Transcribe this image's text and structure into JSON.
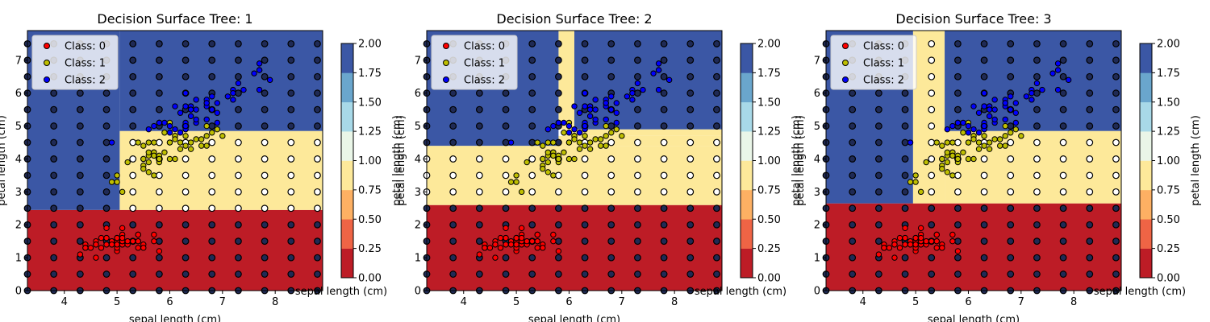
{
  "colors": {
    "class0": "#bd1c26",
    "class1": "#fde99a",
    "class2": "#3b57a5",
    "point0": "#ff0000",
    "point1": "#bfbf00",
    "point2": "#0000ff",
    "grid_point_fill_dark": "#1f2a55",
    "grid_point_fill_light": "#ffffff"
  },
  "chart_data": [
    {
      "type": "scatter",
      "title": "Decision Surface Tree: 1",
      "xlabel": "sepal length (cm)",
      "ylabel": "petal length (cm)",
      "xlim": [
        3.3,
        8.9
      ],
      "ylim": [
        0,
        7.9
      ],
      "xticks": [
        4,
        5,
        6,
        7,
        8
      ],
      "yticks": [
        0,
        1,
        2,
        3,
        4,
        5,
        6,
        7
      ],
      "legend": {
        "position": "top-left",
        "entries": [
          "Class: 0",
          "Class: 1",
          "Class: 2"
        ]
      },
      "regions": [
        {
          "class": 0,
          "x": [
            3.3,
            8.9
          ],
          "y": [
            0,
            2.45
          ]
        },
        {
          "class": 1,
          "x": [
            5.05,
            8.9
          ],
          "y": [
            2.45,
            4.85
          ]
        },
        {
          "class": 1,
          "x": [
            6.05,
            6.15
          ],
          "y": [
            4.85,
            5.15
          ]
        },
        {
          "class": 1,
          "x": [
            6.95,
            8.9
          ],
          "y": [
            4.85,
            5.0
          ]
        },
        {
          "class": 2,
          "x": [
            3.3,
            5.05
          ],
          "y": [
            2.45,
            7.9
          ]
        },
        {
          "class": 2,
          "x": [
            5.05,
            8.9
          ],
          "y": [
            4.85,
            7.9
          ]
        }
      ],
      "colorbar": {
        "ticks": [
          "0.00",
          "0.25",
          "0.50",
          "0.75",
          "1.00",
          "1.25",
          "1.50",
          "1.75",
          "2.00"
        ],
        "label": "petal length (cm)",
        "xlabel": "sepal length (cm)"
      }
    },
    {
      "type": "scatter",
      "title": "Decision Surface Tree: 2",
      "xlabel": "sepal length (cm)",
      "ylabel": "petal length (cm)",
      "xlim": [
        3.3,
        8.9
      ],
      "ylim": [
        0,
        7.9
      ],
      "xticks": [
        4,
        5,
        6,
        7,
        8
      ],
      "yticks": [
        0,
        1,
        2,
        3,
        4,
        5,
        6,
        7
      ],
      "legend": {
        "position": "top-left",
        "entries": [
          "Class: 0",
          "Class: 1",
          "Class: 2"
        ]
      },
      "regions": [
        {
          "class": 0,
          "x": [
            3.3,
            8.9
          ],
          "y": [
            0,
            2.6
          ]
        },
        {
          "class": 1,
          "x": [
            3.3,
            8.9
          ],
          "y": [
            2.6,
            4.4
          ]
        },
        {
          "class": 1,
          "x": [
            5.05,
            8.9
          ],
          "y": [
            4.4,
            4.7
          ]
        },
        {
          "class": 1,
          "x": [
            5.9,
            8.9
          ],
          "y": [
            4.7,
            4.9
          ]
        },
        {
          "class": 1,
          "x": [
            5.8,
            6.1
          ],
          "y": [
            4.9,
            7.9
          ]
        },
        {
          "class": 2,
          "x": [
            3.3,
            5.8
          ],
          "y": [
            4.4,
            7.9
          ]
        },
        {
          "class": 2,
          "x": [
            6.1,
            8.9
          ],
          "y": [
            4.9,
            7.9
          ]
        }
      ],
      "colorbar": {
        "ticks": [
          "0.00",
          "0.25",
          "0.50",
          "0.75",
          "1.00",
          "1.25",
          "1.50",
          "1.75",
          "2.00"
        ],
        "label": "petal length (cm)",
        "xlabel": "sepal length (cm)"
      }
    },
    {
      "type": "scatter",
      "title": "Decision Surface Tree: 3",
      "xlabel": "sepal length (cm)",
      "ylabel": "petal length (cm)",
      "xlim": [
        3.3,
        8.9
      ],
      "ylim": [
        0,
        7.9
      ],
      "xticks": [
        4,
        5,
        6,
        7,
        8
      ],
      "yticks": [
        0,
        1,
        2,
        3,
        4,
        5,
        6,
        7
      ],
      "legend": {
        "position": "top-left",
        "entries": [
          "Class: 0",
          "Class: 1",
          "Class: 2"
        ]
      },
      "regions": [
        {
          "class": 0,
          "x": [
            3.3,
            8.9
          ],
          "y": [
            0,
            2.65
          ]
        },
        {
          "class": 1,
          "x": [
            4.95,
            5.55
          ],
          "y": [
            2.65,
            7.9
          ]
        },
        {
          "class": 1,
          "x": [
            5.55,
            8.9
          ],
          "y": [
            2.65,
            4.85
          ]
        },
        {
          "class": 1,
          "x": [
            6.45,
            8.9
          ],
          "y": [
            4.85,
            5.0
          ]
        },
        {
          "class": 2,
          "x": [
            3.3,
            4.95
          ],
          "y": [
            2.65,
            7.9
          ]
        },
        {
          "class": 2,
          "x": [
            5.55,
            8.9
          ],
          "y": [
            4.85,
            7.9
          ]
        }
      ],
      "colorbar": {
        "ticks": [
          "0.00",
          "0.25",
          "0.50",
          "0.75",
          "1.00",
          "1.25",
          "1.50",
          "1.75",
          "2.00"
        ],
        "label": "petal length (cm)",
        "xlabel": "sepal length (cm)"
      }
    }
  ],
  "iris_points": [
    [
      5.1,
      1.4,
      0
    ],
    [
      4.9,
      1.4,
      0
    ],
    [
      4.7,
      1.3,
      0
    ],
    [
      4.6,
      1.5,
      0
    ],
    [
      5.0,
      1.4,
      0
    ],
    [
      5.4,
      1.7,
      0
    ],
    [
      4.6,
      1.4,
      0
    ],
    [
      5.0,
      1.5,
      0
    ],
    [
      4.4,
      1.4,
      0
    ],
    [
      4.9,
      1.5,
      0
    ],
    [
      5.4,
      1.5,
      0
    ],
    [
      4.8,
      1.6,
      0
    ],
    [
      4.8,
      1.4,
      0
    ],
    [
      4.3,
      1.1,
      0
    ],
    [
      5.8,
      1.2,
      0
    ],
    [
      5.7,
      1.5,
      0
    ],
    [
      5.4,
      1.3,
      0
    ],
    [
      5.1,
      1.4,
      0
    ],
    [
      5.7,
      1.7,
      0
    ],
    [
      5.1,
      1.5,
      0
    ],
    [
      5.4,
      1.7,
      0
    ],
    [
      5.1,
      1.5,
      0
    ],
    [
      4.6,
      1.0,
      0
    ],
    [
      5.1,
      1.7,
      0
    ],
    [
      4.8,
      1.9,
      0
    ],
    [
      5.0,
      1.6,
      0
    ],
    [
      5.0,
      1.6,
      0
    ],
    [
      5.2,
      1.5,
      0
    ],
    [
      5.2,
      1.4,
      0
    ],
    [
      4.7,
      1.6,
      0
    ],
    [
      4.8,
      1.6,
      0
    ],
    [
      5.4,
      1.5,
      0
    ],
    [
      5.2,
      1.5,
      0
    ],
    [
      5.5,
      1.4,
      0
    ],
    [
      4.9,
      1.5,
      0
    ],
    [
      5.0,
      1.2,
      0
    ],
    [
      5.5,
      1.3,
      0
    ],
    [
      4.9,
      1.4,
      0
    ],
    [
      4.4,
      1.3,
      0
    ],
    [
      5.1,
      1.5,
      0
    ],
    [
      5.0,
      1.3,
      0
    ],
    [
      4.5,
      1.3,
      0
    ],
    [
      4.4,
      1.3,
      0
    ],
    [
      5.0,
      1.6,
      0
    ],
    [
      5.1,
      1.9,
      0
    ],
    [
      4.8,
      1.4,
      0
    ],
    [
      5.1,
      1.6,
      0
    ],
    [
      4.6,
      1.4,
      0
    ],
    [
      5.3,
      1.5,
      0
    ],
    [
      5.0,
      1.4,
      0
    ],
    [
      7.0,
      4.7,
      1
    ],
    [
      6.4,
      4.5,
      1
    ],
    [
      6.9,
      4.9,
      1
    ],
    [
      5.5,
      4.0,
      1
    ],
    [
      6.5,
      4.6,
      1
    ],
    [
      5.7,
      4.5,
      1
    ],
    [
      6.3,
      4.7,
      1
    ],
    [
      4.9,
      3.3,
      1
    ],
    [
      6.6,
      4.6,
      1
    ],
    [
      5.2,
      3.9,
      1
    ],
    [
      5.0,
      3.5,
      1
    ],
    [
      5.9,
      4.2,
      1
    ],
    [
      6.0,
      4.0,
      1
    ],
    [
      6.1,
      4.7,
      1
    ],
    [
      5.6,
      3.6,
      1
    ],
    [
      6.7,
      4.4,
      1
    ],
    [
      5.6,
      4.5,
      1
    ],
    [
      5.8,
      4.1,
      1
    ],
    [
      6.2,
      4.5,
      1
    ],
    [
      5.6,
      3.9,
      1
    ],
    [
      5.9,
      4.8,
      1
    ],
    [
      6.1,
      4.0,
      1
    ],
    [
      6.3,
      4.9,
      1
    ],
    [
      6.1,
      4.7,
      1
    ],
    [
      6.4,
      4.3,
      1
    ],
    [
      6.6,
      4.4,
      1
    ],
    [
      6.8,
      4.8,
      1
    ],
    [
      6.7,
      5.0,
      1
    ],
    [
      6.0,
      4.5,
      1
    ],
    [
      5.7,
      3.5,
      1
    ],
    [
      5.5,
      3.8,
      1
    ],
    [
      5.5,
      3.7,
      1
    ],
    [
      5.8,
      3.9,
      1
    ],
    [
      6.0,
      5.1,
      1
    ],
    [
      5.4,
      4.5,
      1
    ],
    [
      6.0,
      4.5,
      1
    ],
    [
      6.7,
      4.7,
      1
    ],
    [
      6.3,
      4.4,
      1
    ],
    [
      5.6,
      4.1,
      1
    ],
    [
      5.5,
      4.0,
      1
    ],
    [
      5.5,
      4.4,
      1
    ],
    [
      6.1,
      4.6,
      1
    ],
    [
      5.8,
      4.0,
      1
    ],
    [
      5.0,
      3.3,
      1
    ],
    [
      5.6,
      4.2,
      1
    ],
    [
      5.7,
      4.2,
      1
    ],
    [
      5.7,
      4.2,
      1
    ],
    [
      6.2,
      4.3,
      1
    ],
    [
      5.1,
      3.0,
      1
    ],
    [
      5.7,
      4.1,
      1
    ],
    [
      6.3,
      6.0,
      2
    ],
    [
      5.8,
      5.1,
      2
    ],
    [
      7.1,
      5.9,
      2
    ],
    [
      6.3,
      5.6,
      2
    ],
    [
      6.5,
      5.8,
      2
    ],
    [
      7.6,
      6.6,
      2
    ],
    [
      4.9,
      4.5,
      2
    ],
    [
      7.3,
      6.3,
      2
    ],
    [
      6.7,
      5.8,
      2
    ],
    [
      7.2,
      6.1,
      2
    ],
    [
      6.5,
      5.1,
      2
    ],
    [
      6.4,
      5.3,
      2
    ],
    [
      6.8,
      5.5,
      2
    ],
    [
      5.7,
      5.0,
      2
    ],
    [
      5.8,
      5.1,
      2
    ],
    [
      6.4,
      5.3,
      2
    ],
    [
      6.5,
      5.5,
      2
    ],
    [
      7.7,
      6.7,
      2
    ],
    [
      7.7,
      6.9,
      2
    ],
    [
      6.0,
      5.0,
      2
    ],
    [
      6.9,
      5.7,
      2
    ],
    [
      5.6,
      4.9,
      2
    ],
    [
      7.7,
      6.7,
      2
    ],
    [
      6.3,
      4.9,
      2
    ],
    [
      6.7,
      5.7,
      2
    ],
    [
      7.2,
      6.0,
      2
    ],
    [
      6.2,
      4.8,
      2
    ],
    [
      6.1,
      4.9,
      2
    ],
    [
      6.4,
      5.6,
      2
    ],
    [
      7.2,
      5.8,
      2
    ],
    [
      7.4,
      6.1,
      2
    ],
    [
      7.9,
      6.4,
      2
    ],
    [
      6.4,
      5.6,
      2
    ],
    [
      6.3,
      5.1,
      2
    ],
    [
      6.1,
      5.6,
      2
    ],
    [
      7.7,
      6.1,
      2
    ],
    [
      6.3,
      5.6,
      2
    ],
    [
      6.4,
      5.5,
      2
    ],
    [
      6.0,
      4.8,
      2
    ],
    [
      6.9,
      5.4,
      2
    ],
    [
      6.7,
      5.6,
      2
    ],
    [
      6.9,
      5.1,
      2
    ],
    [
      5.8,
      5.1,
      2
    ],
    [
      6.8,
      5.9,
      2
    ],
    [
      6.7,
      5.7,
      2
    ],
    [
      6.7,
      5.2,
      2
    ],
    [
      6.3,
      5.0,
      2
    ],
    [
      6.5,
      5.2,
      2
    ],
    [
      6.2,
      5.4,
      2
    ],
    [
      5.9,
      5.1,
      2
    ]
  ]
}
